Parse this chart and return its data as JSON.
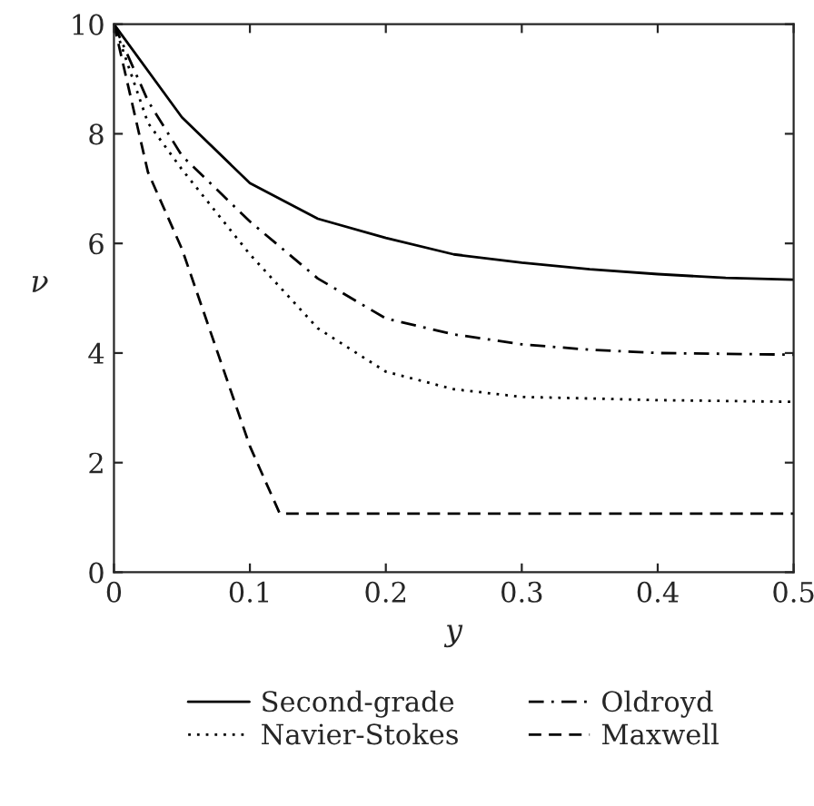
{
  "chart_data": {
    "type": "line",
    "xlabel": "y",
    "ylabel": "ν",
    "xlim": [
      0,
      0.5
    ],
    "ylim": [
      0,
      10
    ],
    "xticks": [
      0,
      0.1,
      0.2,
      0.3,
      0.4,
      0.5
    ],
    "yticks": [
      0,
      2,
      4,
      6,
      8,
      10
    ],
    "grid": false,
    "legend": "bottom",
    "marker": "none",
    "series": [
      {
        "name": "Second-grade",
        "color": "#000000",
        "line_style": "solid",
        "x": [
          0,
          0.05,
          0.1,
          0.15,
          0.2,
          0.25,
          0.3,
          0.35,
          0.4,
          0.45,
          0.5
        ],
        "values": [
          10,
          8.3,
          7.1,
          6.45,
          6.1,
          5.8,
          5.65,
          5.53,
          5.44,
          5.37,
          5.34
        ]
      },
      {
        "name": "Navier-Stokes",
        "color": "#000000",
        "line_style": "dotted",
        "x": [
          0,
          0.025,
          0.05,
          0.1,
          0.15,
          0.2,
          0.25,
          0.3,
          0.4,
          0.5
        ],
        "values": [
          10,
          8.2,
          7.35,
          5.8,
          4.45,
          3.66,
          3.34,
          3.2,
          3.14,
          3.11
        ]
      },
      {
        "name": "Oldroyd",
        "color": "#000000",
        "line_style": "dashdot",
        "x": [
          0,
          0.025,
          0.05,
          0.1,
          0.15,
          0.2,
          0.25,
          0.3,
          0.35,
          0.4,
          0.5
        ],
        "values": [
          10,
          8.6,
          7.6,
          6.4,
          5.36,
          4.63,
          4.34,
          4.16,
          4.06,
          4.0,
          3.97
        ]
      },
      {
        "name": "Maxwell",
        "color": "#000000",
        "line_style": "dashed",
        "x": [
          0,
          0.025,
          0.05,
          0.075,
          0.1,
          0.122,
          0.5
        ],
        "values": [
          10,
          7.3,
          5.9,
          4.1,
          2.3,
          1.07,
          1.07
        ]
      }
    ]
  }
}
